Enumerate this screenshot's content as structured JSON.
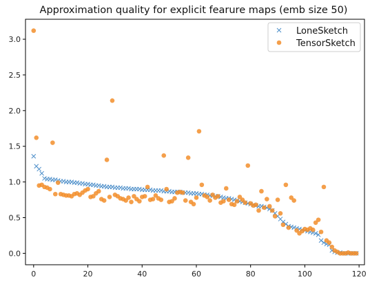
{
  "chart_data": {
    "type": "scatter",
    "title": "Approximation quality for explicit fearure maps (emb size 50)",
    "xlabel": "",
    "ylabel": "",
    "xlim": [
      -3,
      122
    ],
    "ylim": [
      -0.16,
      3.28
    ],
    "xticks": [
      "0",
      "20",
      "40",
      "60",
      "80",
      "100",
      "120"
    ],
    "yticks": [
      "0.0",
      "0.5",
      "1.0",
      "1.5",
      "2.0",
      "2.5",
      "3.0"
    ],
    "grid": false,
    "legend_position": "top-right",
    "series": [
      {
        "name": "LoneSketch",
        "marker": "x",
        "color": "#4c8ec9",
        "x": [
          0,
          1,
          2,
          3,
          4,
          5,
          6,
          7,
          8,
          9,
          10,
          11,
          12,
          13,
          14,
          15,
          16,
          17,
          18,
          19,
          20,
          21,
          22,
          23,
          24,
          25,
          26,
          27,
          28,
          29,
          30,
          31,
          32,
          33,
          34,
          35,
          36,
          37,
          38,
          39,
          40,
          41,
          42,
          43,
          44,
          45,
          46,
          47,
          48,
          49,
          50,
          51,
          52,
          53,
          54,
          55,
          56,
          57,
          58,
          59,
          60,
          61,
          62,
          63,
          64,
          65,
          66,
          67,
          68,
          69,
          70,
          71,
          72,
          73,
          74,
          75,
          76,
          77,
          78,
          79,
          80,
          81,
          82,
          83,
          84,
          85,
          86,
          87,
          88,
          89,
          90,
          91,
          92,
          93,
          94,
          95,
          96,
          97,
          98,
          99,
          100,
          101,
          102,
          103,
          104,
          105,
          106,
          107,
          108,
          109,
          110,
          111,
          112,
          113,
          114,
          115,
          116,
          117,
          118,
          119
        ],
        "y": [
          1.36,
          1.22,
          1.18,
          1.12,
          1.05,
          1.04,
          1.04,
          1.03,
          1.03,
          1.02,
          1.01,
          1.01,
          1.0,
          1.0,
          1.0,
          0.99,
          0.99,
          0.98,
          0.98,
          0.97,
          0.97,
          0.96,
          0.96,
          0.95,
          0.95,
          0.94,
          0.94,
          0.93,
          0.93,
          0.93,
          0.92,
          0.92,
          0.92,
          0.91,
          0.91,
          0.91,
          0.9,
          0.9,
          0.9,
          0.9,
          0.89,
          0.89,
          0.89,
          0.89,
          0.88,
          0.88,
          0.88,
          0.88,
          0.87,
          0.87,
          0.87,
          0.86,
          0.86,
          0.86,
          0.86,
          0.85,
          0.85,
          0.85,
          0.84,
          0.84,
          0.84,
          0.83,
          0.83,
          0.82,
          0.82,
          0.81,
          0.81,
          0.8,
          0.8,
          0.79,
          0.78,
          0.77,
          0.77,
          0.76,
          0.75,
          0.74,
          0.73,
          0.72,
          0.71,
          0.7,
          0.69,
          0.68,
          0.67,
          0.66,
          0.66,
          0.65,
          0.64,
          0.62,
          0.6,
          0.56,
          0.52,
          0.48,
          0.44,
          0.41,
          0.38,
          0.37,
          0.36,
          0.35,
          0.34,
          0.33,
          0.32,
          0.31,
          0.3,
          0.29,
          0.28,
          0.26,
          0.18,
          0.15,
          0.13,
          0.12,
          0.04,
          0.02,
          0.01,
          0.01,
          0.0,
          0.0,
          0.0,
          0.0,
          0.0,
          0.0
        ]
      },
      {
        "name": "TensorSketch",
        "marker": "o",
        "color": "#f28e2b",
        "x": [
          0,
          1,
          2,
          3,
          4,
          5,
          6,
          7,
          8,
          9,
          10,
          11,
          12,
          13,
          14,
          15,
          16,
          17,
          18,
          19,
          20,
          21,
          22,
          23,
          24,
          25,
          26,
          27,
          28,
          29,
          30,
          31,
          32,
          33,
          34,
          35,
          36,
          37,
          38,
          39,
          40,
          41,
          42,
          43,
          44,
          45,
          46,
          47,
          48,
          49,
          50,
          51,
          52,
          53,
          54,
          55,
          56,
          57,
          58,
          59,
          60,
          61,
          62,
          63,
          64,
          65,
          66,
          67,
          68,
          69,
          70,
          71,
          72,
          73,
          74,
          75,
          76,
          77,
          78,
          79,
          80,
          81,
          82,
          83,
          84,
          85,
          86,
          87,
          88,
          89,
          90,
          91,
          92,
          93,
          94,
          95,
          96,
          97,
          98,
          99,
          100,
          101,
          102,
          103,
          104,
          105,
          106,
          107,
          108,
          109,
          110,
          111,
          112,
          113,
          114,
          115,
          116,
          117,
          118,
          119
        ],
        "y": [
          3.12,
          1.62,
          0.95,
          0.96,
          0.93,
          0.92,
          0.9,
          1.55,
          0.83,
          0.99,
          0.83,
          0.82,
          0.81,
          0.81,
          0.8,
          0.83,
          0.84,
          0.82,
          0.85,
          0.88,
          0.9,
          0.79,
          0.8,
          0.84,
          0.87,
          0.76,
          0.74,
          1.31,
          0.79,
          2.14,
          0.82,
          0.8,
          0.77,
          0.76,
          0.74,
          0.78,
          0.72,
          0.8,
          0.76,
          0.73,
          0.79,
          0.8,
          0.93,
          0.75,
          0.76,
          0.81,
          0.77,
          0.75,
          1.37,
          0.9,
          0.72,
          0.73,
          0.77,
          0.85,
          0.86,
          0.85,
          0.74,
          1.34,
          0.72,
          0.69,
          0.78,
          1.71,
          0.96,
          0.81,
          0.79,
          0.74,
          0.82,
          0.78,
          0.8,
          0.71,
          0.73,
          0.91,
          0.75,
          0.69,
          0.68,
          0.73,
          0.79,
          0.75,
          0.71,
          1.23,
          0.7,
          0.67,
          0.68,
          0.6,
          0.87,
          0.64,
          0.76,
          0.66,
          0.6,
          0.52,
          0.75,
          0.56,
          0.4,
          0.96,
          0.36,
          0.78,
          0.74,
          0.32,
          0.28,
          0.31,
          0.34,
          0.33,
          0.35,
          0.33,
          0.43,
          0.47,
          0.3,
          0.93,
          0.18,
          0.15,
          0.09,
          0.04,
          0.02,
          0.0,
          0.0,
          0.0,
          0.01,
          0.0,
          0.0,
          0.0
        ]
      }
    ]
  }
}
